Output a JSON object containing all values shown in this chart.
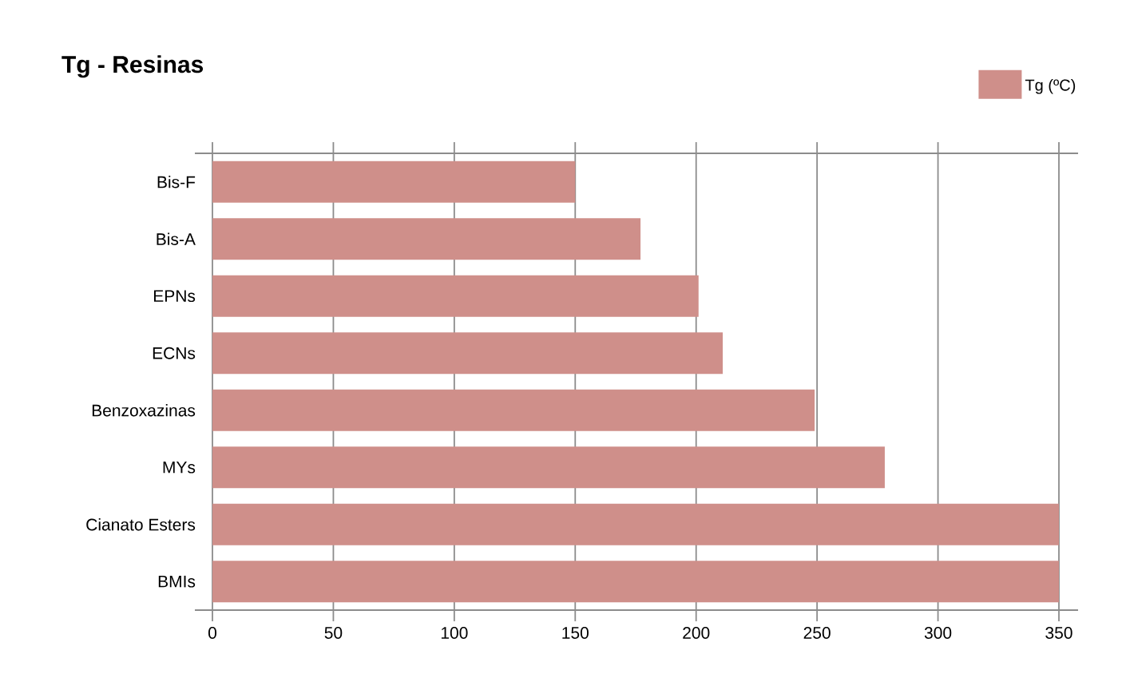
{
  "chart_data": {
    "type": "bar",
    "orientation": "horizontal",
    "title": "Tg - Resinas",
    "categories": [
      "Bis-F",
      "Bis-A",
      "EPNs",
      "ECNs",
      "Benzoxazinas",
      "MYs",
      "Cianato Esters",
      "BMIs"
    ],
    "series": [
      {
        "name": "Tg (ºC)",
        "color": "#cf8f8a",
        "values": [
          150,
          177,
          201,
          211,
          249,
          278,
          350,
          350
        ]
      }
    ],
    "xlim": [
      0,
      350
    ],
    "xticks": [
      0,
      50,
      100,
      150,
      200,
      250,
      300,
      350
    ],
    "grid": "x",
    "legend": "top right"
  }
}
